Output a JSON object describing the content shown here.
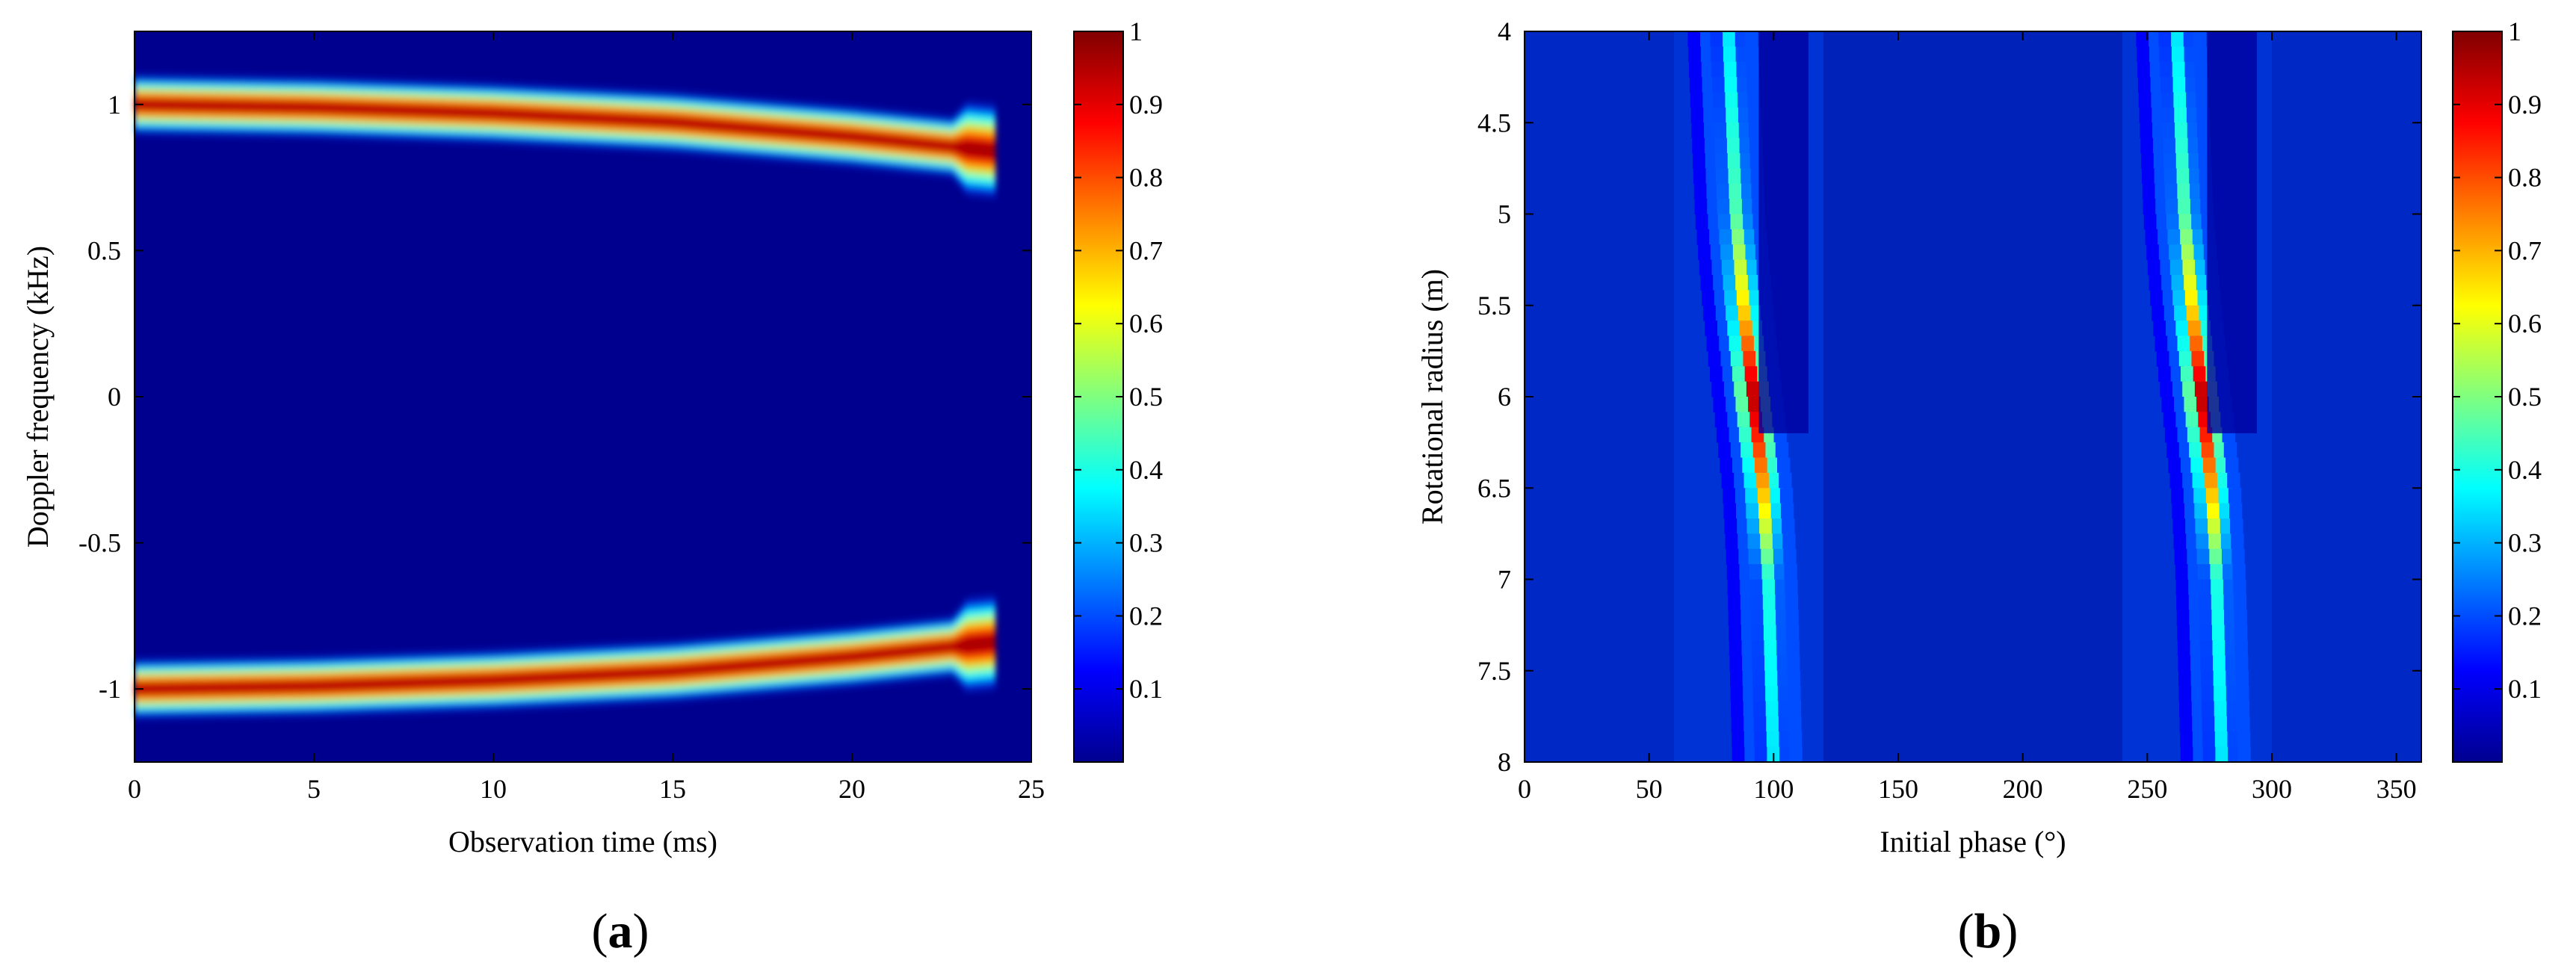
{
  "chart_data": [
    {
      "type": "heatmap",
      "panel_label": "a",
      "xlabel": "Observation time (ms)",
      "ylabel": "Doppler frequency (kHz)",
      "xlim": [
        0,
        25
      ],
      "ylim": [
        -1.25,
        1.25
      ],
      "xticks": [
        0,
        5,
        10,
        15,
        20,
        25
      ],
      "yticks": [
        -1,
        -0.5,
        0,
        0.5,
        1
      ],
      "colorbar": {
        "range": [
          0,
          1
        ],
        "ticks": [
          0.1,
          0.2,
          0.3,
          0.4,
          0.5,
          0.6,
          0.7,
          0.8,
          0.9,
          1
        ]
      },
      "ridges": [
        {
          "name": "",
          "t": [
            0,
            5,
            10,
            15,
            20,
            24
          ],
          "f": [
            1.0,
            0.99,
            0.97,
            0.94,
            0.89,
            0.84
          ]
        },
        {
          "name": "",
          "t": [
            0,
            5,
            10,
            15,
            20,
            24
          ],
          "f": [
            -1.0,
            -0.99,
            -0.97,
            -0.94,
            -0.89,
            -0.84
          ]
        }
      ]
    },
    {
      "type": "heatmap",
      "panel_label": "b",
      "xlabel": "Initial phase (°)",
      "ylabel": "Rotational radius (m)",
      "xlim": [
        0,
        360
      ],
      "ylim": [
        8,
        4
      ],
      "xticks": [
        0,
        50,
        100,
        150,
        200,
        250,
        300,
        350
      ],
      "yticks": [
        4,
        4.5,
        5,
        5.5,
        6,
        6.5,
        7,
        7.5,
        8
      ],
      "colorbar": {
        "range": [
          0,
          1
        ],
        "ticks": [
          0.1,
          0.2,
          0.3,
          0.4,
          0.5,
          0.6,
          0.7,
          0.8,
          0.9,
          1
        ]
      },
      "ridges": [
        {
          "name": "",
          "r": [
            4,
            5,
            5.5,
            6,
            6.5,
            7,
            8
          ],
          "phase": [
            82,
            85,
            88,
            92,
            96,
            98,
            100
          ],
          "peak": [
            0.35,
            0.45,
            0.65,
            0.95,
            0.7,
            0.4,
            0.35
          ]
        },
        {
          "name": "",
          "r": [
            4,
            5,
            5.5,
            6,
            6.5,
            7,
            8
          ],
          "phase": [
            262,
            265,
            268,
            272,
            276,
            278,
            280
          ],
          "peak": [
            0.35,
            0.45,
            0.65,
            0.95,
            0.7,
            0.4,
            0.35
          ]
        }
      ]
    }
  ]
}
